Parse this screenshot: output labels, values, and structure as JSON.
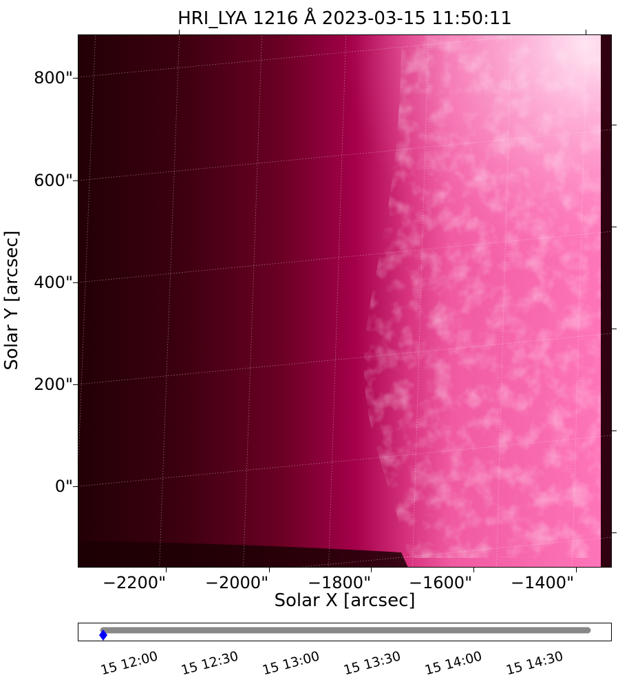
{
  "figure": {
    "title": "HRI_LYA 1216 Å 2023-03-15 11:50:11",
    "xlabel": "Solar X [arcsec]",
    "ylabel": "Solar Y [arcsec]",
    "x_ticks": [
      "−2200\"",
      "−2000\"",
      "−1800\"",
      "−1600\"",
      "−1400\""
    ],
    "y_ticks": [
      "800\"",
      "600\"",
      "400\"",
      "200\"",
      "0\""
    ],
    "x_tick_values": [
      -2200,
      -2000,
      -1800,
      -1600,
      -1400
    ],
    "y_tick_values": [
      800,
      600,
      400,
      200,
      0
    ],
    "x_range": [
      -2310,
      -1255
    ],
    "y_range": [
      -160,
      885
    ],
    "colormap": {
      "dark": "#230006",
      "mid": "#a8004a",
      "bright": "#ff66b2",
      "peak": "#ffe6f3"
    },
    "grid": true
  },
  "timeline": {
    "labels": [
      "15 12:00",
      "15 12:30",
      "15 13:00",
      "15 13:30",
      "15 14:00",
      "15 14:30"
    ],
    "marker_color": "#0000ff",
    "track_color": "#888888"
  }
}
